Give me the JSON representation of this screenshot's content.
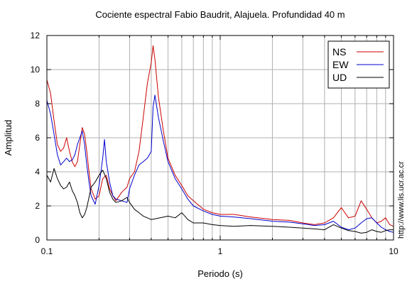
{
  "chart_data": {
    "type": "line",
    "title": "Cociente espectral Fabio Baudrit, Alajuela. Profundidad 40 m",
    "xlabel": "Periodo (s)",
    "ylabel": "Amplitud",
    "xscale": "log",
    "xlim": [
      0.1,
      10
    ],
    "ylim": [
      0,
      12
    ],
    "x_ticks": [
      0.1,
      1,
      10
    ],
    "x_tick_labels": [
      "0.1",
      "1",
      "10"
    ],
    "y_ticks": [
      0,
      2,
      4,
      6,
      8,
      10,
      12
    ],
    "y_tick_labels": [
      "0",
      "2",
      "4",
      "6",
      "8",
      "10",
      "12"
    ],
    "grid": true,
    "legend_position": "top-right",
    "side_note": "http://www.lis.ucr.ac.cr",
    "series": [
      {
        "name": "NS",
        "color": "#cc0000",
        "points": [
          [
            0.1,
            9.4
          ],
          [
            0.105,
            8.6
          ],
          [
            0.11,
            7.0
          ],
          [
            0.115,
            5.6
          ],
          [
            0.12,
            5.2
          ],
          [
            0.125,
            5.4
          ],
          [
            0.13,
            6.0
          ],
          [
            0.135,
            5.2
          ],
          [
            0.14,
            4.6
          ],
          [
            0.145,
            4.3
          ],
          [
            0.15,
            4.6
          ],
          [
            0.155,
            5.6
          ],
          [
            0.16,
            6.6
          ],
          [
            0.165,
            6.2
          ],
          [
            0.17,
            5.2
          ],
          [
            0.175,
            4.0
          ],
          [
            0.18,
            3.0
          ],
          [
            0.19,
            2.4
          ],
          [
            0.2,
            2.6
          ],
          [
            0.21,
            3.6
          ],
          [
            0.22,
            3.8
          ],
          [
            0.23,
            3.0
          ],
          [
            0.24,
            2.6
          ],
          [
            0.25,
            2.3
          ],
          [
            0.27,
            2.8
          ],
          [
            0.29,
            3.1
          ],
          [
            0.3,
            3.6
          ],
          [
            0.32,
            4.0
          ],
          [
            0.34,
            5.2
          ],
          [
            0.36,
            7.2
          ],
          [
            0.38,
            9.2
          ],
          [
            0.4,
            10.4
          ],
          [
            0.41,
            11.4
          ],
          [
            0.42,
            10.6
          ],
          [
            0.44,
            8.4
          ],
          [
            0.47,
            6.4
          ],
          [
            0.5,
            4.8
          ],
          [
            0.55,
            3.8
          ],
          [
            0.6,
            3.2
          ],
          [
            0.65,
            2.6
          ],
          [
            0.7,
            2.3
          ],
          [
            0.8,
            1.8
          ],
          [
            0.9,
            1.6
          ],
          [
            1.0,
            1.5
          ],
          [
            1.2,
            1.5
          ],
          [
            1.5,
            1.35
          ],
          [
            2.0,
            1.2
          ],
          [
            2.5,
            1.15
          ],
          [
            3.0,
            1.0
          ],
          [
            3.5,
            0.9
          ],
          [
            4.0,
            1.0
          ],
          [
            4.5,
            1.3
          ],
          [
            5.0,
            1.9
          ],
          [
            5.5,
            1.3
          ],
          [
            6.0,
            1.4
          ],
          [
            6.5,
            2.3
          ],
          [
            7.0,
            1.8
          ],
          [
            7.5,
            1.3
          ],
          [
            8.0,
            1.0
          ],
          [
            8.5,
            1.1
          ],
          [
            9.0,
            1.3
          ],
          [
            9.5,
            0.9
          ],
          [
            10.0,
            0.8
          ]
        ]
      },
      {
        "name": "EW",
        "color": "#0000cc",
        "points": [
          [
            0.1,
            8.2
          ],
          [
            0.105,
            7.4
          ],
          [
            0.11,
            6.2
          ],
          [
            0.115,
            5.0
          ],
          [
            0.12,
            4.4
          ],
          [
            0.125,
            4.6
          ],
          [
            0.13,
            4.8
          ],
          [
            0.135,
            4.6
          ],
          [
            0.14,
            4.7
          ],
          [
            0.145,
            5.0
          ],
          [
            0.15,
            5.6
          ],
          [
            0.155,
            6.0
          ],
          [
            0.16,
            6.4
          ],
          [
            0.165,
            5.6
          ],
          [
            0.17,
            4.4
          ],
          [
            0.175,
            3.4
          ],
          [
            0.18,
            2.6
          ],
          [
            0.19,
            2.1
          ],
          [
            0.2,
            3.2
          ],
          [
            0.21,
            4.8
          ],
          [
            0.215,
            5.9
          ],
          [
            0.22,
            4.6
          ],
          [
            0.23,
            3.4
          ],
          [
            0.24,
            2.6
          ],
          [
            0.25,
            2.4
          ],
          [
            0.27,
            2.3
          ],
          [
            0.29,
            2.2
          ],
          [
            0.3,
            3.0
          ],
          [
            0.32,
            3.8
          ],
          [
            0.34,
            4.4
          ],
          [
            0.36,
            4.6
          ],
          [
            0.38,
            4.8
          ],
          [
            0.4,
            5.2
          ],
          [
            0.41,
            7.8
          ],
          [
            0.42,
            8.5
          ],
          [
            0.44,
            7.2
          ],
          [
            0.47,
            5.8
          ],
          [
            0.5,
            4.6
          ],
          [
            0.55,
            3.6
          ],
          [
            0.6,
            3.0
          ],
          [
            0.65,
            2.4
          ],
          [
            0.7,
            2.0
          ],
          [
            0.8,
            1.7
          ],
          [
            0.9,
            1.5
          ],
          [
            1.0,
            1.4
          ],
          [
            1.2,
            1.35
          ],
          [
            1.5,
            1.25
          ],
          [
            2.0,
            1.1
          ],
          [
            2.5,
            1.05
          ],
          [
            3.0,
            0.95
          ],
          [
            3.5,
            0.85
          ],
          [
            4.0,
            0.9
          ],
          [
            4.5,
            1.1
          ],
          [
            5.0,
            0.75
          ],
          [
            5.5,
            0.6
          ],
          [
            6.0,
            0.7
          ],
          [
            6.5,
            1.0
          ],
          [
            7.0,
            1.25
          ],
          [
            7.5,
            1.3
          ],
          [
            8.0,
            1.0
          ],
          [
            8.5,
            0.75
          ],
          [
            9.0,
            0.6
          ],
          [
            9.5,
            0.5
          ],
          [
            10.0,
            0.45
          ]
        ]
      },
      {
        "name": "UD",
        "color": "#000000",
        "points": [
          [
            0.1,
            3.8
          ],
          [
            0.105,
            3.4
          ],
          [
            0.11,
            4.2
          ],
          [
            0.115,
            3.6
          ],
          [
            0.12,
            3.2
          ],
          [
            0.125,
            3.0
          ],
          [
            0.13,
            3.1
          ],
          [
            0.135,
            3.4
          ],
          [
            0.14,
            2.9
          ],
          [
            0.145,
            2.6
          ],
          [
            0.15,
            2.2
          ],
          [
            0.155,
            1.6
          ],
          [
            0.16,
            1.3
          ],
          [
            0.165,
            1.5
          ],
          [
            0.17,
            1.9
          ],
          [
            0.175,
            2.5
          ],
          [
            0.18,
            3.1
          ],
          [
            0.19,
            3.4
          ],
          [
            0.2,
            3.8
          ],
          [
            0.21,
            4.1
          ],
          [
            0.22,
            3.6
          ],
          [
            0.23,
            2.8
          ],
          [
            0.24,
            2.4
          ],
          [
            0.25,
            2.2
          ],
          [
            0.27,
            2.3
          ],
          [
            0.29,
            2.5
          ],
          [
            0.3,
            2.2
          ],
          [
            0.32,
            1.8
          ],
          [
            0.34,
            1.6
          ],
          [
            0.36,
            1.4
          ],
          [
            0.38,
            1.3
          ],
          [
            0.4,
            1.2
          ],
          [
            0.45,
            1.3
          ],
          [
            0.5,
            1.4
          ],
          [
            0.55,
            1.3
          ],
          [
            0.6,
            1.6
          ],
          [
            0.65,
            1.2
          ],
          [
            0.7,
            1.0
          ],
          [
            0.8,
            1.0
          ],
          [
            0.9,
            0.9
          ],
          [
            1.0,
            0.85
          ],
          [
            1.2,
            0.8
          ],
          [
            1.5,
            0.85
          ],
          [
            2.0,
            0.8
          ],
          [
            2.5,
            0.75
          ],
          [
            3.0,
            0.7
          ],
          [
            3.5,
            0.65
          ],
          [
            4.0,
            0.6
          ],
          [
            4.5,
            0.9
          ],
          [
            5.0,
            0.7
          ],
          [
            5.5,
            0.55
          ],
          [
            6.0,
            0.5
          ],
          [
            6.5,
            0.4
          ],
          [
            7.0,
            0.45
          ],
          [
            7.5,
            0.6
          ],
          [
            8.0,
            0.5
          ],
          [
            8.5,
            0.45
          ],
          [
            9.0,
            0.55
          ],
          [
            9.5,
            0.6
          ],
          [
            10.0,
            0.6
          ]
        ]
      }
    ]
  }
}
